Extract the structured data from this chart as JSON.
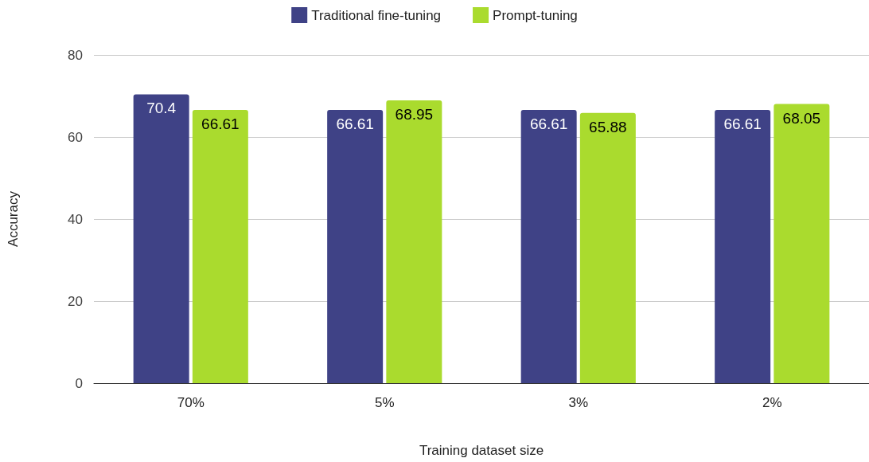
{
  "chart_data": {
    "type": "bar",
    "xlabel": "Training dataset size",
    "ylabel": "Accuracy",
    "categories": [
      "70%",
      "5%",
      "3%",
      "2%"
    ],
    "series": [
      {
        "name": "Traditional fine-tuning",
        "color": "#3f4286",
        "values": [
          70.4,
          66.61,
          66.61,
          66.61
        ]
      },
      {
        "name": "Prompt-tuning",
        "color": "#aadb2e",
        "values": [
          66.61,
          68.95,
          65.88,
          68.05
        ]
      }
    ],
    "ylim": [
      0,
      80
    ],
    "yticks": [
      0,
      20,
      40,
      60,
      80
    ],
    "grid": "y",
    "legend": "top",
    "data_labels": true
  }
}
